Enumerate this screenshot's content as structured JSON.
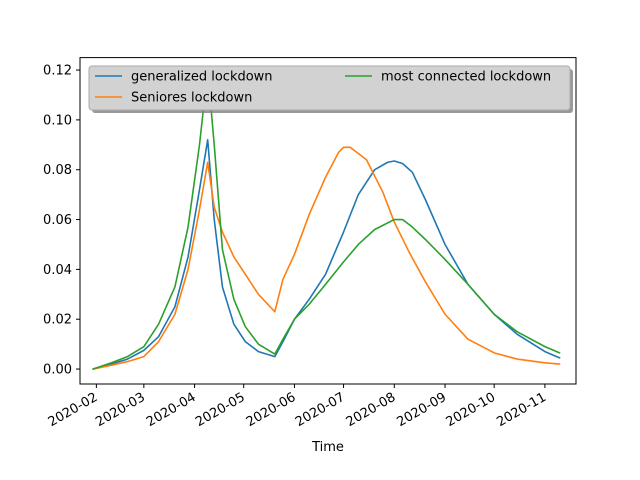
{
  "chart_data": {
    "type": "line",
    "title": "",
    "xlabel": "Time",
    "ylabel": "",
    "xlim": [
      "2020-01-22",
      "2020-11-20"
    ],
    "ylim": [
      -0.006,
      0.125
    ],
    "x_ticks": [
      "2020-02-01",
      "2020-03-01",
      "2020-04-01",
      "2020-05-01",
      "2020-06-01",
      "2020-07-01",
      "2020-08-01",
      "2020-09-01",
      "2020-10-01",
      "2020-11-01"
    ],
    "x_tick_labels": [
      "2020-02",
      "2020-03",
      "2020-04",
      "2020-05",
      "2020-06",
      "2020-07",
      "2020-08",
      "2020-09",
      "2020-10",
      "2020-11"
    ],
    "y_ticks": [
      0.0,
      0.02,
      0.04,
      0.06,
      0.08,
      0.1,
      0.12
    ],
    "y_tick_labels": [
      "0.00",
      "0.02",
      "0.04",
      "0.06",
      "0.08",
      "0.10",
      "0.12"
    ],
    "grid": false,
    "legend": {
      "placement": "top",
      "columns": 2
    },
    "series": [
      {
        "name": "generalized lockdown",
        "color": "#1f77b4",
        "x": [
          "2020-01-30",
          "2020-02-10",
          "2020-02-20",
          "2020-03-01",
          "2020-03-10",
          "2020-03-20",
          "2020-03-28",
          "2020-04-04",
          "2020-04-09",
          "2020-04-13",
          "2020-04-18",
          "2020-04-25",
          "2020-05-02",
          "2020-05-10",
          "2020-05-20",
          "2020-05-25",
          "2020-06-01",
          "2020-06-10",
          "2020-06-20",
          "2020-07-01",
          "2020-07-10",
          "2020-07-20",
          "2020-07-28",
          "2020-08-01",
          "2020-08-06",
          "2020-08-12",
          "2020-08-20",
          "2020-09-01",
          "2020-09-15",
          "2020-10-01",
          "2020-10-15",
          "2020-11-01",
          "2020-11-10"
        ],
        "y": [
          0.0,
          0.002,
          0.004,
          0.0075,
          0.013,
          0.025,
          0.045,
          0.072,
          0.092,
          0.06,
          0.033,
          0.018,
          0.011,
          0.007,
          0.005,
          0.011,
          0.02,
          0.028,
          0.038,
          0.055,
          0.07,
          0.08,
          0.083,
          0.0835,
          0.0825,
          0.079,
          0.068,
          0.05,
          0.034,
          0.022,
          0.014,
          0.007,
          0.0045
        ]
      },
      {
        "name": "Seniores lockdown",
        "color": "#ff7f0e",
        "x": [
          "2020-01-30",
          "2020-02-10",
          "2020-02-20",
          "2020-03-01",
          "2020-03-10",
          "2020-03-20",
          "2020-03-28",
          "2020-04-04",
          "2020-04-09",
          "2020-04-13",
          "2020-04-18",
          "2020-04-25",
          "2020-05-02",
          "2020-05-10",
          "2020-05-20",
          "2020-05-25",
          "2020-06-01",
          "2020-06-10",
          "2020-06-20",
          "2020-06-28",
          "2020-07-01",
          "2020-07-05",
          "2020-07-15",
          "2020-07-25",
          "2020-08-01",
          "2020-08-10",
          "2020-08-20",
          "2020-09-01",
          "2020-09-15",
          "2020-10-01",
          "2020-10-15",
          "2020-11-01",
          "2020-11-10"
        ],
        "y": [
          0.0,
          0.0015,
          0.003,
          0.005,
          0.011,
          0.022,
          0.04,
          0.064,
          0.083,
          0.065,
          0.055,
          0.045,
          0.038,
          0.03,
          0.023,
          0.036,
          0.046,
          0.062,
          0.077,
          0.087,
          0.089,
          0.089,
          0.084,
          0.071,
          0.059,
          0.047,
          0.035,
          0.022,
          0.012,
          0.0065,
          0.004,
          0.0025,
          0.002
        ]
      },
      {
        "name": "most connected lockdown",
        "color": "#2ca02c",
        "x": [
          "2020-01-30",
          "2020-02-10",
          "2020-02-20",
          "2020-03-01",
          "2020-03-10",
          "2020-03-20",
          "2020-03-28",
          "2020-04-04",
          "2020-04-09",
          "2020-04-13",
          "2020-04-18",
          "2020-04-25",
          "2020-05-02",
          "2020-05-10",
          "2020-05-20",
          "2020-05-25",
          "2020-06-01",
          "2020-06-10",
          "2020-06-20",
          "2020-07-01",
          "2020-07-10",
          "2020-07-20",
          "2020-08-01",
          "2020-08-06",
          "2020-08-12",
          "2020-08-20",
          "2020-09-01",
          "2020-09-15",
          "2020-10-01",
          "2020-10-15",
          "2020-11-01",
          "2020-11-10"
        ],
        "y": [
          0.0,
          0.0025,
          0.005,
          0.009,
          0.018,
          0.033,
          0.057,
          0.09,
          0.12,
          0.09,
          0.048,
          0.028,
          0.017,
          0.01,
          0.006,
          0.012,
          0.02,
          0.026,
          0.034,
          0.043,
          0.05,
          0.056,
          0.06,
          0.06,
          0.057,
          0.052,
          0.044,
          0.034,
          0.022,
          0.015,
          0.009,
          0.0065
        ]
      }
    ]
  }
}
